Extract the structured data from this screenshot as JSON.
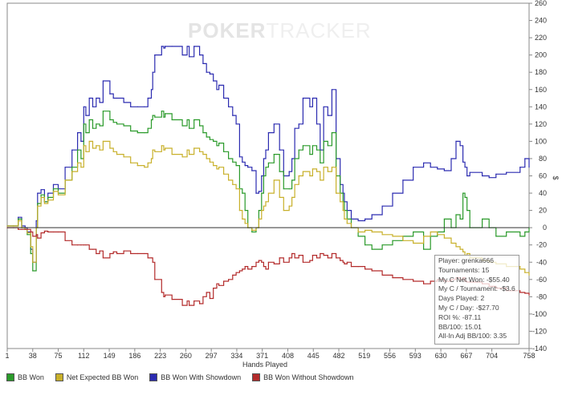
{
  "watermark": {
    "part1": "POKER",
    "part2": "TRACKER"
  },
  "chart_data": {
    "type": "line",
    "xlabel": "Hands Played",
    "ylabel": "$",
    "xlim": [
      1,
      758
    ],
    "ylim": [
      -140,
      260
    ],
    "xticks": [
      1,
      38,
      75,
      112,
      149,
      186,
      223,
      260,
      297,
      334,
      371,
      408,
      445,
      482,
      519,
      556,
      593,
      630,
      667,
      704,
      758
    ],
    "yticks": [
      260,
      240,
      220,
      200,
      180,
      160,
      140,
      120,
      100,
      80,
      60,
      40,
      20,
      0,
      -20,
      -40,
      -60,
      -80,
      -100,
      -120,
      -140
    ],
    "series": [
      {
        "name": "BB Won With Showdown",
        "color": "#2b2bb0",
        "x": [
          1,
          10,
          17,
          22,
          27,
          30,
          35,
          38,
          43,
          45,
          50,
          55,
          60,
          68,
          75,
          85,
          95,
          103,
          108,
          112,
          115,
          120,
          125,
          130,
          135,
          140,
          150,
          155,
          160,
          170,
          180,
          190,
          200,
          205,
          210,
          212,
          215,
          225,
          228,
          230,
          240,
          255,
          262,
          265,
          272,
          280,
          285,
          290,
          295,
          300,
          305,
          308,
          315,
          322,
          328,
          333,
          338,
          342,
          346,
          350,
          356,
          362,
          366,
          370,
          373,
          376,
          380,
          388,
          396,
          402,
          410,
          414,
          418,
          424,
          430,
          440,
          444,
          450,
          455,
          460,
          466,
          472,
          478,
          484,
          488,
          490,
          494,
          500,
          510,
          520,
          530,
          545,
          560,
          575,
          590,
          605,
          615,
          625,
          635,
          645,
          652,
          658,
          662,
          665,
          668,
          672,
          690,
          700,
          710,
          725,
          745,
          752,
          758
        ],
        "y": [
          2,
          2,
          12,
          2,
          0,
          -5,
          -25,
          -40,
          8,
          40,
          44,
          30,
          40,
          50,
          45,
          70,
          90,
          110,
          100,
          140,
          130,
          150,
          140,
          150,
          145,
          170,
          155,
          150,
          150,
          145,
          140,
          140,
          140,
          150,
          160,
          180,
          200,
          210,
          208,
          210,
          210,
          200,
          210,
          198,
          210,
          200,
          190,
          180,
          178,
          170,
          160,
          165,
          150,
          140,
          130,
          120,
          82,
          76,
          72,
          70,
          66,
          40,
          42,
          60,
          80,
          90,
          110,
          120,
          90,
          60,
          65,
          80,
          115,
          120,
          150,
          140,
          150,
          120,
          90,
          140,
          130,
          160,
          80,
          50,
          40,
          30,
          20,
          10,
          8,
          10,
          15,
          25,
          40,
          55,
          70,
          75,
          70,
          68,
          66,
          80,
          100,
          95,
          76,
          70,
          60,
          64,
          60,
          58,
          62,
          64,
          70,
          80,
          70
        ]
      },
      {
        "name": "BB Won",
        "color": "#2a9a2a",
        "x": [
          1,
          10,
          17,
          22,
          27,
          30,
          35,
          38,
          43,
          45,
          50,
          55,
          60,
          68,
          75,
          85,
          95,
          103,
          108,
          112,
          115,
          120,
          125,
          130,
          135,
          140,
          150,
          155,
          160,
          170,
          180,
          190,
          200,
          205,
          210,
          212,
          215,
          225,
          228,
          230,
          240,
          255,
          262,
          265,
          272,
          280,
          285,
          290,
          295,
          300,
          305,
          308,
          315,
          322,
          328,
          333,
          338,
          342,
          346,
          350,
          356,
          362,
          366,
          370,
          373,
          376,
          380,
          388,
          396,
          402,
          410,
          414,
          418,
          424,
          430,
          440,
          444,
          450,
          455,
          460,
          466,
          472,
          478,
          484,
          488,
          490,
          494,
          500,
          510,
          520,
          530,
          545,
          560,
          575,
          590,
          605,
          615,
          625,
          635,
          645,
          652,
          658,
          662,
          665,
          668,
          672,
          690,
          700,
          710,
          725,
          745,
          752,
          758
        ],
        "y": [
          2,
          2,
          10,
          0,
          -2,
          -8,
          -30,
          -50,
          0,
          28,
          38,
          30,
          35,
          45,
          40,
          55,
          70,
          90,
          80,
          120,
          110,
          125,
          115,
          120,
          118,
          135,
          125,
          122,
          120,
          118,
          112,
          110,
          110,
          115,
          125,
          130,
          128,
          135,
          128,
          132,
          125,
          118,
          125,
          115,
          125,
          118,
          110,
          105,
          102,
          100,
          95,
          98,
          88,
          80,
          76,
          72,
          45,
          40,
          20,
          0,
          -5,
          0,
          20,
          40,
          60,
          70,
          75,
          85,
          65,
          45,
          45,
          55,
          80,
          90,
          95,
          85,
          95,
          90,
          75,
          100,
          95,
          110,
          60,
          40,
          30,
          20,
          10,
          0,
          -10,
          -20,
          -25,
          -20,
          -15,
          -10,
          -5,
          -25,
          -10,
          -5,
          10,
          0,
          15,
          10,
          40,
          35,
          20,
          0,
          10,
          0,
          -10,
          -5,
          -10,
          -5,
          0
        ]
      },
      {
        "name": "Net Expected BB Won",
        "color": "#c8b02a",
        "x": [
          1,
          10,
          17,
          22,
          27,
          30,
          35,
          38,
          43,
          45,
          50,
          55,
          60,
          68,
          75,
          85,
          95,
          103,
          108,
          112,
          115,
          120,
          125,
          130,
          135,
          140,
          150,
          155,
          160,
          170,
          180,
          190,
          200,
          205,
          210,
          212,
          215,
          225,
          228,
          230,
          240,
          255,
          262,
          265,
          272,
          280,
          285,
          290,
          295,
          300,
          305,
          308,
          315,
          322,
          328,
          333,
          338,
          342,
          346,
          350,
          356,
          362,
          366,
          370,
          373,
          376,
          380,
          388,
          396,
          402,
          410,
          414,
          418,
          424,
          430,
          440,
          444,
          450,
          455,
          460,
          466,
          472,
          478,
          484,
          488,
          490,
          494,
          500,
          510,
          520,
          530,
          545,
          560,
          575,
          590,
          605,
          615,
          625,
          635,
          645,
          652,
          658,
          662,
          665,
          668,
          672,
          690,
          700,
          710,
          725,
          745,
          752,
          758
        ],
        "y": [
          2,
          2,
          8,
          0,
          -2,
          -6,
          -22,
          -40,
          0,
          25,
          35,
          28,
          32,
          42,
          38,
          55,
          65,
          75,
          70,
          95,
          88,
          100,
          92,
          95,
          90,
          100,
          92,
          88,
          85,
          82,
          75,
          72,
          70,
          75,
          80,
          90,
          88,
          95,
          90,
          92,
          85,
          82,
          90,
          85,
          92,
          88,
          85,
          80,
          76,
          72,
          68,
          70,
          62,
          55,
          50,
          45,
          20,
          10,
          5,
          0,
          -3,
          0,
          10,
          20,
          25,
          30,
          40,
          55,
          35,
          20,
          25,
          35,
          50,
          60,
          65,
          60,
          68,
          65,
          55,
          70,
          65,
          70,
          40,
          30,
          20,
          10,
          5,
          0,
          -5,
          -3,
          -5,
          -8,
          -10,
          -15,
          -18,
          -10,
          -5,
          -8,
          -12,
          -18,
          -22,
          -25,
          -28,
          -32,
          -30,
          -35,
          -38,
          -40,
          -42,
          -45,
          -48,
          -52,
          -55
        ]
      },
      {
        "name": "BB Won Without Showdown",
        "color": "#b32b2b",
        "x": [
          1,
          10,
          17,
          22,
          27,
          30,
          35,
          38,
          43,
          45,
          50,
          55,
          60,
          68,
          75,
          85,
          95,
          103,
          108,
          112,
          115,
          120,
          125,
          130,
          135,
          140,
          150,
          155,
          160,
          170,
          180,
          190,
          200,
          205,
          210,
          212,
          215,
          225,
          228,
          230,
          240,
          255,
          262,
          265,
          272,
          280,
          285,
          290,
          295,
          300,
          305,
          308,
          315,
          322,
          328,
          333,
          338,
          342,
          346,
          350,
          356,
          362,
          366,
          370,
          373,
          376,
          380,
          388,
          396,
          402,
          410,
          414,
          418,
          424,
          430,
          440,
          444,
          450,
          455,
          460,
          466,
          472,
          478,
          484,
          488,
          490,
          494,
          500,
          510,
          520,
          530,
          545,
          560,
          575,
          590,
          605,
          615,
          625,
          635,
          645,
          652,
          658,
          662,
          665,
          668,
          672,
          690,
          700,
          710,
          725,
          745,
          752,
          758
        ],
        "y": [
          0,
          0,
          -2,
          -2,
          -2,
          -2,
          -5,
          -10,
          -8,
          -12,
          -6,
          -4,
          -5,
          -5,
          -5,
          -15,
          -20,
          -20,
          -20,
          -20,
          -20,
          -25,
          -25,
          -30,
          -27,
          -35,
          -30,
          -28,
          -30,
          -27,
          -30,
          -30,
          -30,
          -35,
          -35,
          -40,
          -60,
          -75,
          -80,
          -78,
          -83,
          -90,
          -85,
          -90,
          -85,
          -88,
          -80,
          -75,
          -82,
          -70,
          -65,
          -67,
          -62,
          -60,
          -55,
          -52,
          -50,
          -48,
          -45,
          -48,
          -45,
          -40,
          -38,
          -40,
          -45,
          -48,
          -40,
          -42,
          -35,
          -40,
          -35,
          -30,
          -35,
          -32,
          -40,
          -38,
          -32,
          -35,
          -30,
          -32,
          -35,
          -30,
          -35,
          -38,
          -40,
          -42,
          -40,
          -45,
          -45,
          -48,
          -50,
          -55,
          -58,
          -60,
          -62,
          -65,
          -62,
          -60,
          -62,
          -60,
          -58,
          -60,
          -58,
          -62,
          -63,
          -63,
          -65,
          -68,
          -70,
          -73,
          -75,
          -76,
          -78
        ]
      }
    ]
  },
  "legend": {
    "items": [
      {
        "label": "BB Won",
        "color": "#2a9a2a"
      },
      {
        "label": "Net Expected BB Won",
        "color": "#c8b02a"
      },
      {
        "label": "BB Won With Showdown",
        "color": "#2b2bb0"
      },
      {
        "label": "BB Won Without Showdown",
        "color": "#b32b2b"
      }
    ]
  },
  "stats": {
    "lines": [
      "Player: grenka666",
      "Tournaments: 15",
      "My C Net Won: -$55.40",
      "My C / Tournament: -$3.69",
      "Days Played: 2",
      "My C / Day: -$27.70",
      "ROI %: -87.11",
      "BB/100: 15.01",
      "All-In Adj BB/100: 3.35"
    ]
  }
}
